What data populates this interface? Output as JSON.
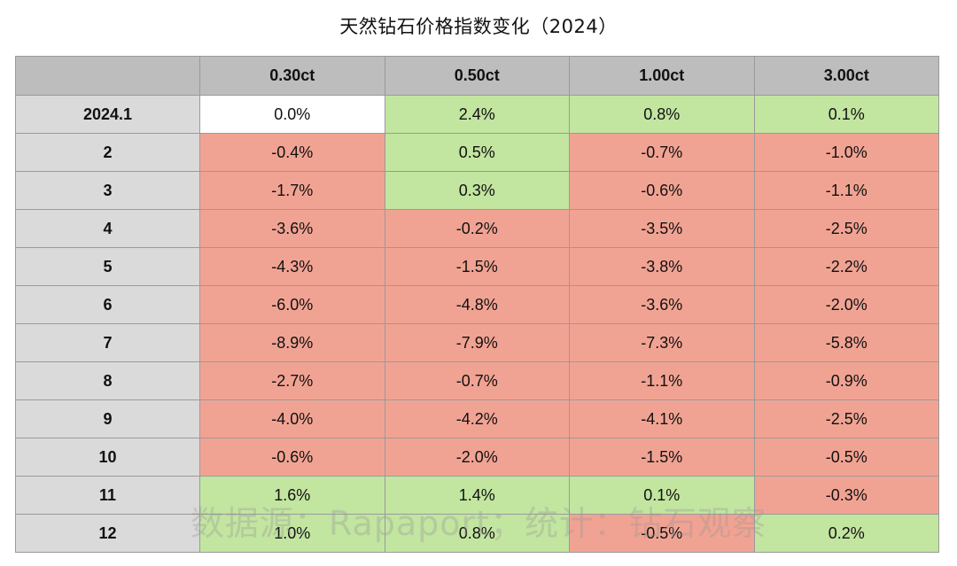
{
  "title": "天然钻石价格指数变化（2024）",
  "watermark": "数据源：Rapaport；统计：钻石观察",
  "colors": {
    "positive": "#c2e5a0",
    "negative": "#f1a393",
    "zero": "#ffffff",
    "header": "#bdbdbd",
    "row_header": "#dadada"
  },
  "chart_data": {
    "type": "table",
    "title": "天然钻石价格指数变化（2024）",
    "columns": [
      "",
      "0.30ct",
      "0.50ct",
      "1.00ct",
      "3.00ct"
    ],
    "rows": [
      {
        "label": "2024.1",
        "values": [
          0.0,
          2.4,
          0.8,
          0.1
        ],
        "display": [
          "0.0%",
          "2.4%",
          "0.8%",
          "0.1%"
        ]
      },
      {
        "label": "2",
        "values": [
          -0.4,
          0.5,
          -0.7,
          -1.0
        ],
        "display": [
          "-0.4%",
          "0.5%",
          "-0.7%",
          "-1.0%"
        ]
      },
      {
        "label": "3",
        "values": [
          -1.7,
          0.3,
          -0.6,
          -1.1
        ],
        "display": [
          "-1.7%",
          "0.3%",
          "-0.6%",
          "-1.1%"
        ]
      },
      {
        "label": "4",
        "values": [
          -3.6,
          -0.2,
          -3.5,
          -2.5
        ],
        "display": [
          "-3.6%",
          "-0.2%",
          "-3.5%",
          "-2.5%"
        ]
      },
      {
        "label": "5",
        "values": [
          -4.3,
          -1.5,
          -3.8,
          -2.2
        ],
        "display": [
          "-4.3%",
          "-1.5%",
          "-3.8%",
          "-2.2%"
        ]
      },
      {
        "label": "6",
        "values": [
          -6.0,
          -4.8,
          -3.6,
          -2.0
        ],
        "display": [
          "-6.0%",
          "-4.8%",
          "-3.6%",
          "-2.0%"
        ]
      },
      {
        "label": "7",
        "values": [
          -8.9,
          -7.9,
          -7.3,
          -5.8
        ],
        "display": [
          "-8.9%",
          "-7.9%",
          "-7.3%",
          "-5.8%"
        ]
      },
      {
        "label": "8",
        "values": [
          -2.7,
          -0.7,
          -1.1,
          -0.9
        ],
        "display": [
          "-2.7%",
          "-0.7%",
          "-1.1%",
          "-0.9%"
        ]
      },
      {
        "label": "9",
        "values": [
          -4.0,
          -4.2,
          -4.1,
          -2.5
        ],
        "display": [
          "-4.0%",
          "-4.2%",
          "-4.1%",
          "-2.5%"
        ]
      },
      {
        "label": "10",
        "values": [
          -0.6,
          -2.0,
          -1.5,
          -0.5
        ],
        "display": [
          "-0.6%",
          "-2.0%",
          "-1.5%",
          "-0.5%"
        ]
      },
      {
        "label": "11",
        "values": [
          1.6,
          1.4,
          0.1,
          -0.3
        ],
        "display": [
          "1.6%",
          "1.4%",
          "0.1%",
          "-0.3%"
        ]
      },
      {
        "label": "12",
        "values": [
          1.0,
          0.8,
          -0.5,
          0.2
        ],
        "display": [
          "1.0%",
          "0.8%",
          "-0.5%",
          "0.2%"
        ]
      }
    ]
  }
}
